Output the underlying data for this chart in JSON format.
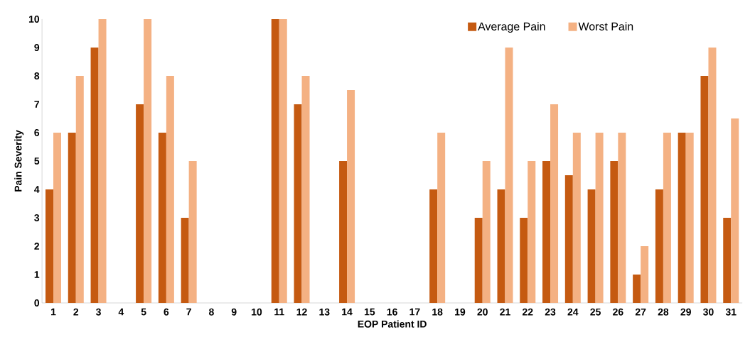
{
  "chart_data": {
    "type": "bar",
    "xlabel": "EOP Patient ID",
    "ylabel": "Pain Severity",
    "categories": [
      "1",
      "2",
      "3",
      "4",
      "5",
      "6",
      "7",
      "8",
      "9",
      "10",
      "11",
      "12",
      "13",
      "14",
      "15",
      "16",
      "17",
      "18",
      "19",
      "20",
      "21",
      "22",
      "23",
      "24",
      "25",
      "26",
      "27",
      "28",
      "29",
      "30",
      "31"
    ],
    "series": [
      {
        "name": "Average Pain",
        "color": "#c55a11",
        "values": [
          4,
          6,
          9,
          0,
          7,
          6,
          3,
          0,
          0,
          0,
          10,
          7,
          0,
          5,
          0,
          0,
          0,
          4,
          0,
          3,
          4,
          3,
          5,
          4.5,
          4,
          5,
          1,
          4,
          6,
          8,
          3
        ]
      },
      {
        "name": "Worst Pain",
        "color": "#f4b183",
        "values": [
          6,
          8,
          10,
          0,
          10,
          8,
          5,
          0,
          0,
          0,
          10,
          8,
          0,
          7.5,
          0,
          0,
          0,
          6,
          0,
          5,
          9,
          5,
          7,
          6,
          6,
          6,
          2,
          6,
          6,
          9,
          6.5
        ]
      }
    ],
    "ylim": [
      0,
      10
    ],
    "yticks": [
      0,
      1,
      2,
      3,
      4,
      5,
      6,
      7,
      8,
      9,
      10
    ],
    "legend": "top right",
    "grid": false
  }
}
